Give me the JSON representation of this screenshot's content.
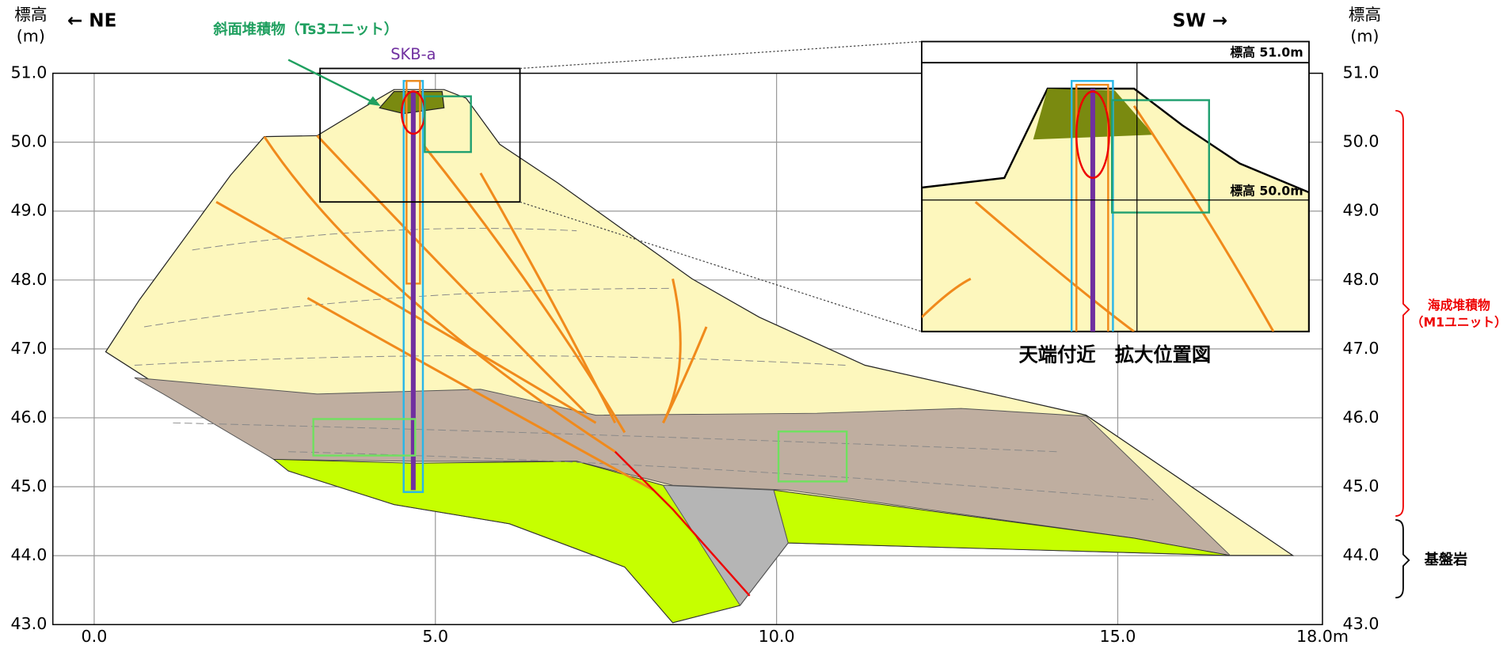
{
  "axes": {
    "x": {
      "lim": [
        0,
        18
      ],
      "ticks": [
        {
          "value": 0,
          "label": "0.0"
        },
        {
          "value": 5,
          "label": "5.0"
        },
        {
          "value": 10,
          "label": "10.0"
        },
        {
          "value": 15,
          "label": "15.0"
        },
        {
          "value": 18,
          "label": "18.0m"
        }
      ]
    },
    "y": {
      "lim": [
        43,
        51
      ],
      "ticks": [
        {
          "value": 43,
          "label": "43.0"
        },
        {
          "value": 44,
          "label": "44.0"
        },
        {
          "value": 45,
          "label": "45.0"
        },
        {
          "value": 46,
          "label": "46.0"
        },
        {
          "value": 47,
          "label": "47.0"
        },
        {
          "value": 48,
          "label": "48.0"
        },
        {
          "value": 49,
          "label": "49.0"
        },
        {
          "value": 50,
          "label": "50.0"
        },
        {
          "value": 51,
          "label": "51.0"
        }
      ]
    },
    "left_title": [
      "標高",
      "(m)"
    ],
    "right_title": [
      "標高",
      "(m)"
    ]
  },
  "direction": {
    "left": "← NE",
    "right": "SW →"
  },
  "labels": {
    "slope_deposit": "斜面堆積物（Ts3ユニット）",
    "borehole": "SKB-a",
    "inset_caption": "天端付近　拡大位置図",
    "inset_top": "標高 51.0m",
    "inset_bottom": "標高 50.0m"
  },
  "legend": {
    "marine": [
      "海成堆積物",
      "（M1ユニット）"
    ],
    "bedrock": "基盤岩"
  }
}
